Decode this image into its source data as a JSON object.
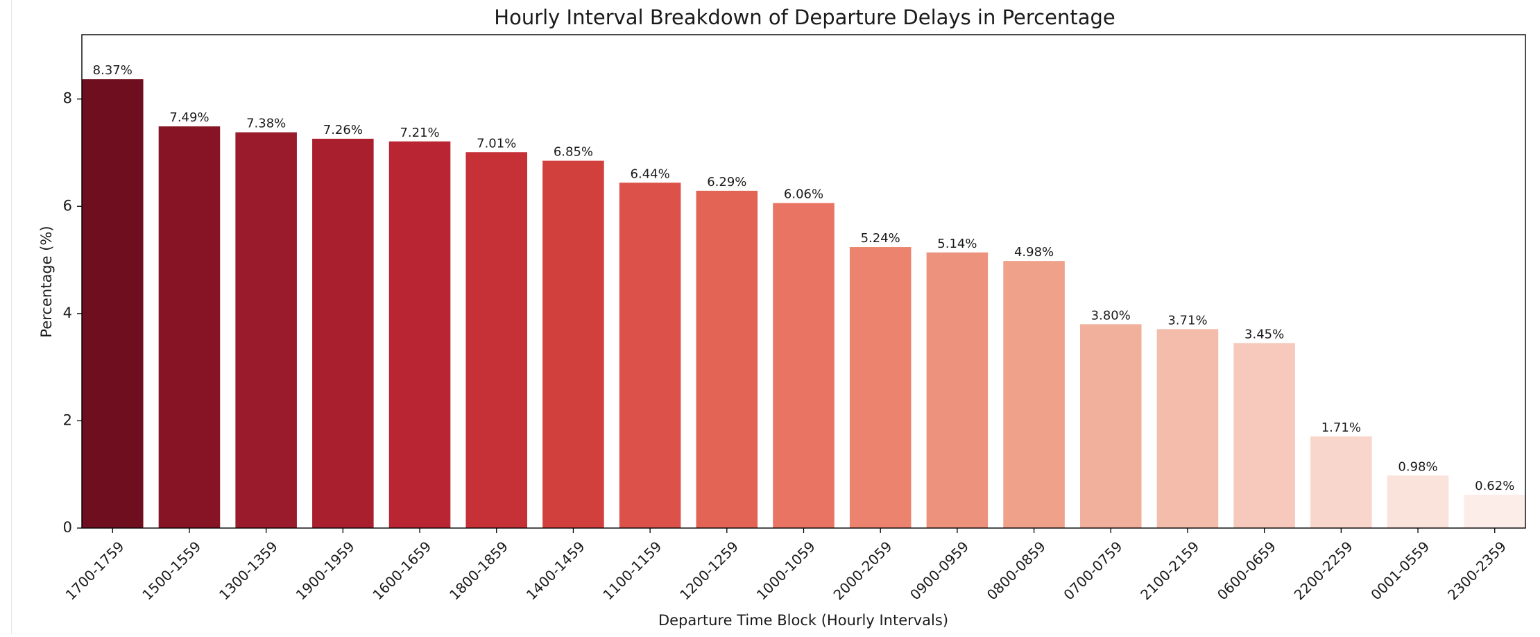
{
  "chart_data": {
    "type": "bar",
    "title": "Hourly Interval Breakdown of Departure Delays in Percentage",
    "xlabel": "Departure Time Block (Hourly Intervals)",
    "ylabel": "Percentage (%)",
    "ylim": [
      0,
      9.2
    ],
    "yticks": [
      0,
      2,
      4,
      6,
      8
    ],
    "categories": [
      "1700-1759",
      "1500-1559",
      "1300-1359",
      "1900-1959",
      "1600-1659",
      "1800-1859",
      "1400-1459",
      "1100-1159",
      "1200-1259",
      "1000-1059",
      "2000-2059",
      "0900-0959",
      "0800-0859",
      "0700-0759",
      "2100-2159",
      "0600-0659",
      "2200-2259",
      "0001-0559",
      "2300-2359"
    ],
    "values": [
      8.37,
      7.49,
      7.38,
      7.26,
      7.21,
      7.01,
      6.85,
      6.44,
      6.29,
      6.06,
      5.24,
      5.14,
      4.98,
      3.8,
      3.71,
      3.45,
      1.71,
      0.98,
      0.62
    ],
    "data_labels": [
      "8.37%",
      "7.49%",
      "7.38%",
      "7.26%",
      "7.21%",
      "7.01%",
      "6.85%",
      "6.44%",
      "6.29%",
      "6.06%",
      "5.24%",
      "5.14%",
      "4.98%",
      "3.80%",
      "3.71%",
      "3.45%",
      "1.71%",
      "0.98%",
      "0.62%"
    ],
    "colors": [
      "#6f0e1e",
      "#861424",
      "#9a1b2b",
      "#aa1f2e",
      "#b92532",
      "#c53137",
      "#d2403e",
      "#dc524a",
      "#e36454",
      "#e97463",
      "#ec836e",
      "#ed927d",
      "#efa18a",
      "#f1b09b",
      "#f4bdab",
      "#f6c9bc",
      "#f8d6cc",
      "#fae3db",
      "#fcede8"
    ],
    "grid": false,
    "legend": "none"
  }
}
